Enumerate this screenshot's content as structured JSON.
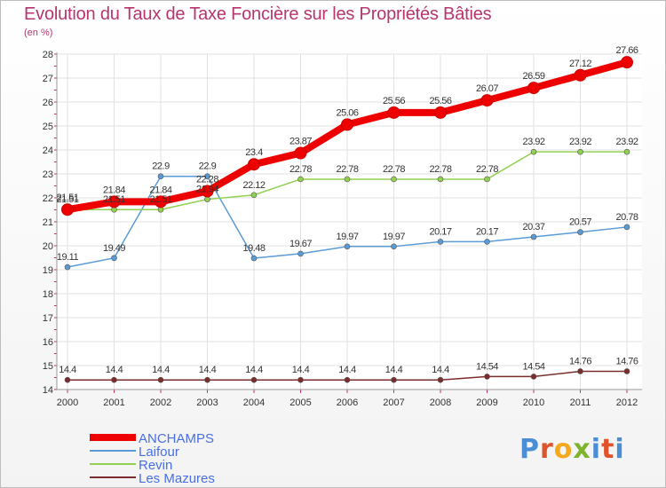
{
  "chart_data": {
    "type": "line",
    "title": "Evolution du Taux de Taxe Foncière sur les Propriétés Bâties",
    "subtitle": "(en %)",
    "x": [
      "2000",
      "2001",
      "2002",
      "2003",
      "2004",
      "2005",
      "2006",
      "2007",
      "2008",
      "2009",
      "2010",
      "2011",
      "2012"
    ],
    "ylim": [
      14,
      28
    ],
    "yticks": [
      "14",
      "15",
      "16",
      "17",
      "18",
      "19",
      "20",
      "21",
      "22",
      "23",
      "24",
      "25",
      "26",
      "27",
      "28"
    ],
    "series": [
      {
        "name": "ANCHAMPS",
        "color": "#ee0000",
        "values": [
          21.51,
          21.84,
          21.84,
          22.28,
          23.4,
          23.87,
          25.06,
          25.56,
          25.56,
          26.07,
          26.59,
          27.12,
          27.66
        ],
        "labels": [
          "21.51",
          "21.84",
          "21.84",
          "22.28",
          "23.4",
          "23.87",
          "25.06",
          "25.56",
          "25.56",
          "26.07",
          "26.59",
          "27.12",
          "27.66"
        ]
      },
      {
        "name": "Laifour",
        "color": "#5b9bd5",
        "values": [
          19.11,
          19.49,
          22.9,
          22.9,
          19.48,
          19.67,
          19.97,
          19.97,
          20.17,
          20.17,
          20.37,
          20.57,
          20.78
        ],
        "labels": [
          "19.11",
          "19.49",
          "22.9",
          "22.9",
          "19.48",
          "19.67",
          "19.97",
          "19.97",
          "20.17",
          "20.17",
          "20.37",
          "20.57",
          "20.78"
        ]
      },
      {
        "name": "Revin",
        "color": "#92d050",
        "values": [
          21.51,
          21.51,
          21.51,
          21.94,
          22.12,
          22.78,
          22.78,
          22.78,
          22.78,
          22.78,
          23.92,
          23.92,
          23.92
        ],
        "labels": [
          "21.51",
          "21.51",
          "21.51",
          "21.94",
          "22.12",
          "22.78",
          "22.78",
          "22.78",
          "22.78",
          "22.78",
          "23.92",
          "23.92",
          "23.92"
        ]
      },
      {
        "name": "Les Mazures",
        "color": "#7b2c2c",
        "values": [
          14.4,
          14.4,
          14.4,
          14.4,
          14.4,
          14.4,
          14.4,
          14.4,
          14.4,
          14.54,
          14.54,
          14.76,
          14.76
        ],
        "labels": [
          "14.4",
          "14.4",
          "14.4",
          "14.4",
          "14.4",
          "14.4",
          "14.4",
          "14.4",
          "14.4",
          "14.54",
          "14.54",
          "14.76",
          "14.76"
        ]
      }
    ],
    "grid": true,
    "legend": "bottom-left",
    "legend_color": "#4a6fe3"
  },
  "logo_text": "Proxiti"
}
